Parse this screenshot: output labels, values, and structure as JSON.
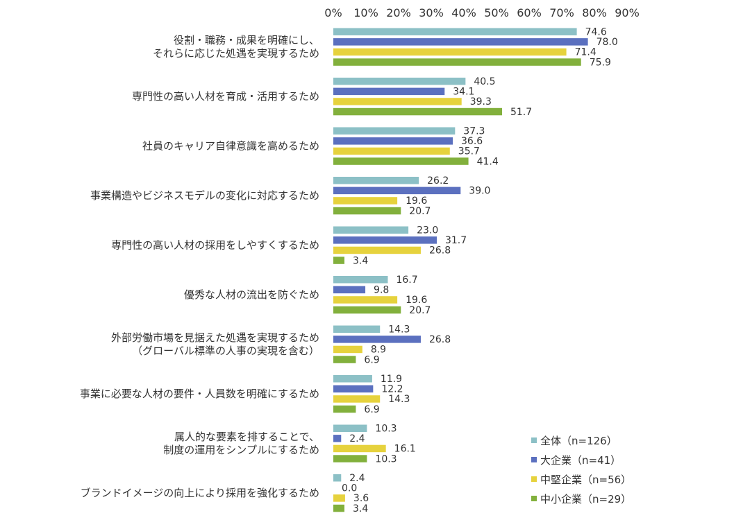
{
  "chart_data": {
    "type": "bar",
    "orientation": "horizontal",
    "xlim": [
      0,
      90
    ],
    "x_ticks": [
      "0%",
      "10%",
      "20%",
      "30%",
      "40%",
      "50%",
      "60%",
      "70%",
      "80%",
      "90%"
    ],
    "x_tick_values": [
      0,
      10,
      20,
      30,
      40,
      50,
      60,
      70,
      80,
      90
    ],
    "grid": false,
    "legend_position": "bottom-right",
    "categories": [
      [
        "役割・職務・成果を明確にし、",
        "それらに応じた処遇を実現するため"
      ],
      [
        "専門性の高い人材を育成・活用するため"
      ],
      [
        "社員のキャリア自律意識を高めるため"
      ],
      [
        "事業構造やビジネスモデルの変化に対応するため"
      ],
      [
        "専門性の高い人材の採用をしやすくするため"
      ],
      [
        "優秀な人材の流出を防ぐため"
      ],
      [
        "外部労働市場を見据えた処遇を実現するため",
        "（グローバル標準の人事の実現を含む）"
      ],
      [
        "事業に必要な人材の要件・人員数を明確にするため"
      ],
      [
        "属人的な要素を排することで、",
        "制度の運用をシンプルにするため"
      ],
      [
        "ブランドイメージの向上により採用を強化するため"
      ]
    ],
    "series": [
      {
        "name": "全体（n=126）",
        "color": "#8cc0c6",
        "values": [
          74.6,
          40.5,
          37.3,
          26.2,
          23.0,
          16.7,
          14.3,
          11.9,
          10.3,
          2.4
        ],
        "labels": [
          "74.6",
          "40.5",
          "37.3",
          "26.2",
          "23.0",
          "16.7",
          "14.3",
          "11.9",
          "10.3",
          "2.4"
        ]
      },
      {
        "name": "大企業（n=41）",
        "color": "#5b70bf",
        "values": [
          78.0,
          34.1,
          36.6,
          39.0,
          31.7,
          9.8,
          26.8,
          12.2,
          2.4,
          0.0
        ],
        "labels": [
          "78.0",
          "34.1",
          "36.6",
          "39.0",
          "31.7",
          "9.8",
          "26.8",
          "12.2",
          "2.4",
          "0.0"
        ]
      },
      {
        "name": "中堅企業（n=56）",
        "color": "#e6d23d",
        "values": [
          71.4,
          39.3,
          35.7,
          19.6,
          26.8,
          19.6,
          8.9,
          14.3,
          16.1,
          3.6
        ],
        "labels": [
          "71.4",
          "39.3",
          "35.7",
          "19.6",
          "26.8",
          "19.6",
          "8.9",
          "14.3",
          "16.1",
          "3.6"
        ]
      },
      {
        "name": "中小企業（n=29）",
        "color": "#82b03c",
        "values": [
          75.9,
          51.7,
          41.4,
          20.7,
          3.4,
          20.7,
          6.9,
          6.9,
          10.3,
          3.4
        ],
        "labels": [
          "75.9",
          "51.7",
          "41.4",
          "20.7",
          "3.4",
          "20.7",
          "6.9",
          "6.9",
          "10.3",
          "3.4"
        ]
      }
    ]
  }
}
